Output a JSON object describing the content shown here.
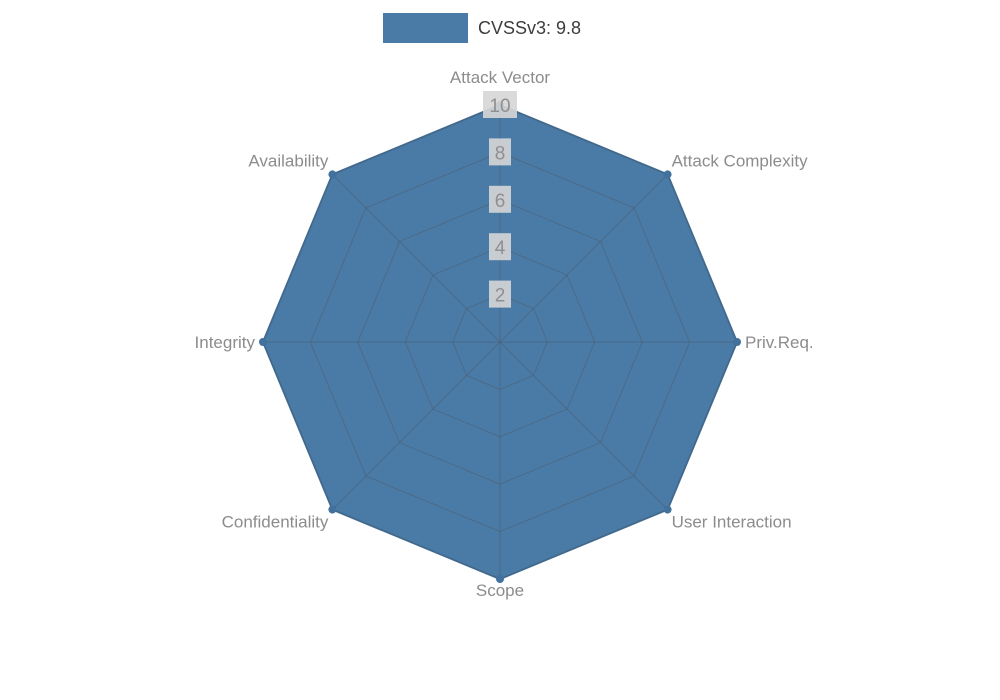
{
  "legend": {
    "label": "CVSSv3: 9.8"
  },
  "chart_data": {
    "type": "radar",
    "title": "CVSSv3: 9.8",
    "categories": [
      "Attack Vector",
      "Attack Complexity",
      "Priv.Req.",
      "User Interaction",
      "Scope",
      "Confidentiality",
      "Integrity",
      "Availability"
    ],
    "series": [
      {
        "name": "CVSSv3: 9.8",
        "values": [
          10,
          10,
          10,
          10,
          10,
          10,
          10,
          10
        ]
      }
    ],
    "ticks": [
      2,
      4,
      6,
      8,
      10
    ],
    "rlim": [
      0,
      10
    ],
    "grid": true,
    "legend_position": "top",
    "fill_color": "#4a7ba7",
    "edge_color": "#41719c",
    "grid_color": "#4d5d6e",
    "label_color": "#8c8c8c",
    "tick_color": "#8f8f8f",
    "tick_bg": "#d6d6d6"
  }
}
